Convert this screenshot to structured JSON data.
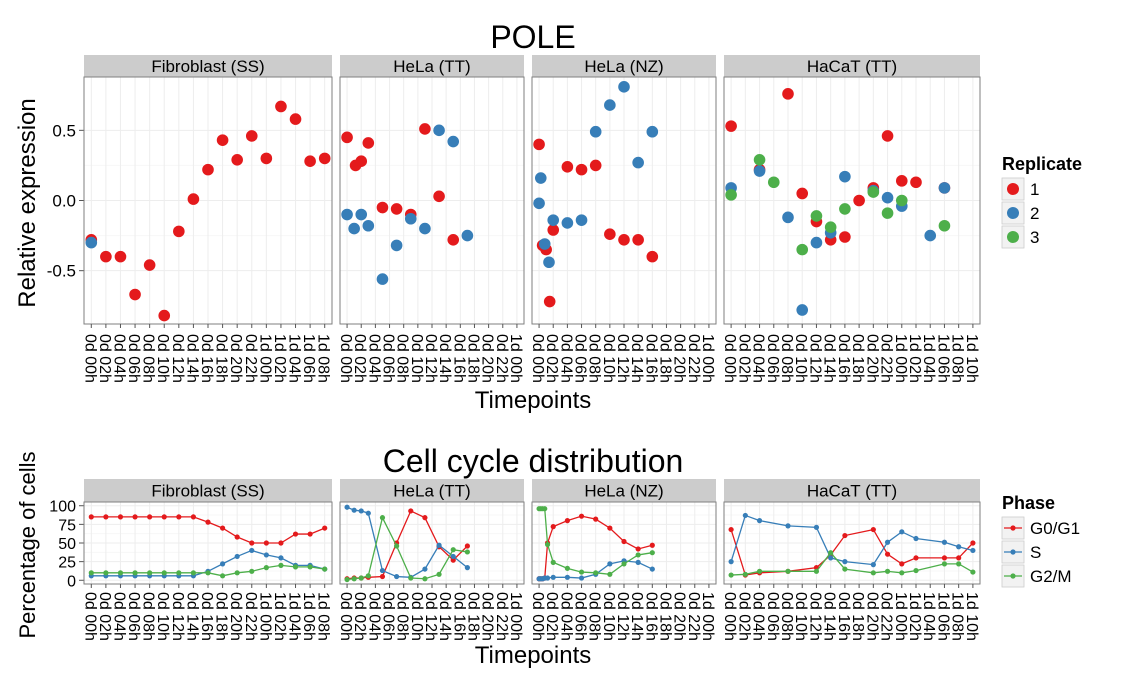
{
  "colors": {
    "red": "#E41A1C",
    "blue": "#377EB8",
    "green": "#4DAF4A",
    "strip_bg": "#CCCCCC",
    "panel_border": "#7F7F7F",
    "grid_major": "#EDEDED",
    "grid_minor": "#F7F7F7"
  },
  "chart_data": [
    {
      "type": "scatter",
      "title": "POLE",
      "xlabel": "Timepoints",
      "ylabel": "Relative expression",
      "ylim": [
        -0.88,
        0.88
      ],
      "yticks": [
        -0.5,
        0.0,
        0.5
      ],
      "ytick_labels": [
        "-0.5",
        "0.0",
        "0.5"
      ],
      "grid": true,
      "legend": {
        "title": "Replicate",
        "position": "right",
        "items": [
          {
            "label": "1",
            "color": "#E41A1C"
          },
          {
            "label": "2",
            "color": "#377EB8"
          },
          {
            "label": "3",
            "color": "#4DAF4A"
          }
        ]
      },
      "panels": [
        {
          "label": "Fibroblast (SS)",
          "x": [
            "0d 00h",
            "0d 02h",
            "0d 04h",
            "0d 06h",
            "0d 08h",
            "0d 10h",
            "0d 12h",
            "0d 14h",
            "0d 16h",
            "0d 18h",
            "0d 20h",
            "0d 22h",
            "1d 00h",
            "1d 02h",
            "1d 04h",
            "1d 06h",
            "1d 08h"
          ],
          "series": [
            {
              "name": "1",
              "values": [
                -0.28,
                -0.4,
                -0.4,
                -0.67,
                -0.46,
                -0.82,
                -0.22,
                0.01,
                0.22,
                0.43,
                0.29,
                0.46,
                0.3,
                0.67,
                0.58,
                0.28,
                0.3
              ]
            },
            {
              "name": "2",
              "values": [
                -0.3,
                null,
                null,
                null,
                null,
                null,
                null,
                null,
                null,
                null,
                null,
                null,
                null,
                null,
                null,
                null,
                null
              ]
            }
          ]
        },
        {
          "label": "HeLa (TT)",
          "x": [
            "0d 00h",
            "0d 02h",
            "0d 04h",
            "0d 06h",
            "0d 08h",
            "0d 10h",
            "0d 12h",
            "0d 14h",
            "0d 16h",
            "0d 18h",
            "0d 20h",
            "0d 22h",
            "1d 00h"
          ],
          "series": [
            {
              "name": "1",
              "values": [
                0.45,
                0.25,
                0.28,
                0.41,
                -0.05,
                -0.06,
                -0.1,
                0.51,
                0.03,
                -0.28,
                null,
                null,
                null
              ]
            },
            {
              "name": "2",
              "values": [
                -0.1,
                -0.2,
                -0.1,
                -0.18,
                -0.56,
                -0.32,
                -0.13,
                -0.2,
                0.5,
                0.42,
                -0.25,
                null,
                null
              ]
            }
          ],
          "x_positions": {
            "1": [
              0,
              0.6,
              1,
              1.5,
              2.5,
              3.5,
              4.5,
              5.5,
              6.5,
              7.5
            ],
            "2": [
              0,
              0.5,
              1,
              1.5,
              2.5,
              3.5,
              4.5,
              5.5,
              6.5,
              7.5,
              8.5
            ]
          }
        },
        {
          "label": "HeLa (NZ)",
          "x": [
            "0d 00h",
            "0d 02h",
            "0d 04h",
            "0d 06h",
            "0d 08h",
            "0d 10h",
            "0d 12h",
            "0d 14h",
            "0d 16h",
            "0d 18h",
            "0d 20h",
            "0d 22h",
            "1d 00h"
          ],
          "series": [
            {
              "name": "1",
              "values": [
                0.4,
                -0.32,
                -0.35,
                -0.72,
                -0.21,
                0.24,
                0.22,
                0.25,
                -0.24,
                -0.28,
                -0.28,
                -0.4
              ]
            },
            {
              "name": "2",
              "values": [
                -0.02,
                0.16,
                -0.31,
                -0.44,
                -0.14,
                -0.16,
                -0.14,
                0.49,
                0.68,
                0.81,
                0.27,
                0.49
              ]
            }
          ],
          "x_positions": {
            "1": [
              0,
              0.25,
              0.5,
              0.75,
              1,
              2,
              3,
              4,
              5,
              6,
              7,
              8
            ],
            "2": [
              0,
              0.12,
              0.4,
              0.7,
              1,
              2,
              3,
              4,
              5,
              6,
              7,
              8
            ]
          }
        },
        {
          "label": "HaCaT (TT)",
          "x": [
            "0d 00h",
            "0d 02h",
            "0d 04h",
            "0d 06h",
            "0d 08h",
            "0d 10h",
            "0d 12h",
            "0d 14h",
            "0d 16h",
            "0d 18h",
            "0d 20h",
            "0d 22h",
            "1d 00h",
            "1d 02h",
            "1d 04h",
            "1d 06h",
            "1d 08h",
            "1d 10h"
          ],
          "series": [
            {
              "name": "1",
              "values": [
                0.53,
                0.22,
                0.76,
                0.05,
                -0.15,
                -0.28,
                -0.26,
                0.0,
                0.09,
                0.46,
                0.14,
                0.13,
                0.09
              ]
            },
            {
              "name": "2",
              "values": [
                0.09,
                0.21,
                -0.12,
                -0.78,
                -0.3,
                -0.23,
                0.17,
                0.07,
                0.02,
                -0.04,
                -0.25,
                0.09
              ]
            },
            {
              "name": "3",
              "values": [
                0.04,
                0.29,
                0.13,
                -0.35,
                -0.11,
                -0.19,
                -0.06,
                0.06,
                -0.09,
                0.0,
                -0.18
              ]
            }
          ],
          "x_positions": {
            "1": [
              0,
              2,
              4,
              5,
              6,
              7,
              8,
              9,
              10,
              11,
              12,
              13,
              15
            ],
            "2": [
              0,
              2,
              4,
              5,
              6,
              7,
              8,
              10,
              11,
              12,
              14,
              15
            ],
            "3": [
              0,
              2,
              3,
              5,
              6,
              7,
              8,
              10,
              11,
              12,
              15
            ]
          }
        }
      ]
    },
    {
      "type": "line",
      "title": "Cell cycle distribution",
      "xlabel": "Timepoints",
      "ylabel": "Percentage of cells",
      "ylim": [
        -5,
        105
      ],
      "yticks": [
        0,
        25,
        50,
        75,
        100
      ],
      "ytick_labels": [
        "0",
        "25",
        "50",
        "75",
        "100"
      ],
      "grid": true,
      "legend": {
        "title": "Phase",
        "position": "right",
        "items": [
          {
            "label": "G0/G1",
            "color": "#E41A1C"
          },
          {
            "label": "S",
            "color": "#377EB8"
          },
          {
            "label": "G2/M",
            "color": "#4DAF4A"
          }
        ]
      },
      "panels": [
        {
          "label": "Fibroblast (SS)",
          "x": [
            "0d 00h",
            "0d 02h",
            "0d 04h",
            "0d 06h",
            "0d 08h",
            "0d 10h",
            "0d 12h",
            "0d 14h",
            "0d 16h",
            "0d 18h",
            "0d 20h",
            "0d 22h",
            "1d 00h",
            "1d 02h",
            "1d 04h",
            "1d 06h",
            "1d 08h"
          ],
          "series": [
            {
              "name": "G0/G1",
              "x_positions": [
                0,
                1,
                2,
                3,
                4,
                5,
                6,
                7,
                8,
                9,
                10,
                11,
                12,
                13,
                14,
                15,
                16
              ],
              "values": [
                85,
                85,
                85,
                85,
                85,
                85,
                85,
                85,
                78,
                70,
                58,
                50,
                50,
                50,
                62,
                62,
                70
              ]
            },
            {
              "name": "S",
              "x_positions": [
                0,
                1,
                2,
                3,
                4,
                5,
                6,
                7,
                8,
                9,
                10,
                11,
                12,
                13,
                14,
                15,
                16
              ],
              "values": [
                6,
                6,
                6,
                6,
                6,
                6,
                6,
                6,
                12,
                22,
                32,
                40,
                34,
                30,
                20,
                20,
                15
              ]
            },
            {
              "name": "G2/M",
              "x_positions": [
                0,
                1,
                2,
                3,
                4,
                5,
                6,
                7,
                8,
                9,
                10,
                11,
                12,
                13,
                14,
                15,
                16
              ],
              "values": [
                10,
                10,
                10,
                10,
                10,
                10,
                10,
                10,
                10,
                6,
                10,
                12,
                17,
                20,
                18,
                18,
                15
              ]
            }
          ]
        },
        {
          "label": "HeLa (TT)",
          "x": [
            "0d 00h",
            "0d 02h",
            "0d 04h",
            "0d 06h",
            "0d 08h",
            "0d 10h",
            "0d 12h",
            "0d 14h",
            "0d 16h",
            "0d 18h",
            "0d 20h",
            "0d 22h",
            "1d 00h"
          ],
          "series": [
            {
              "name": "G0/G1",
              "x_positions": [
                0,
                0.5,
                1,
                1.5,
                2.5,
                3.5,
                4.5,
                5.5,
                6.5,
                7.5,
                8.5
              ],
              "values": [
                2,
                3,
                3,
                4,
                5,
                50,
                93,
                84,
                45,
                27,
                46
              ]
            },
            {
              "name": "S",
              "x_positions": [
                0,
                0.5,
                1,
                1.5,
                2.5,
                3.5,
                4.5,
                5.5,
                6.5,
                7.5,
                8.5
              ],
              "values": [
                98,
                94,
                93,
                90,
                13,
                5,
                4,
                15,
                47,
                32,
                17
              ]
            },
            {
              "name": "G2/M",
              "x_positions": [
                0,
                0.5,
                1,
                1.5,
                2.5,
                3.5,
                4.5,
                5.5,
                6.5,
                7.5,
                8.5
              ],
              "values": [
                1,
                2,
                3,
                6,
                84,
                46,
                3,
                2,
                8,
                41,
                38
              ]
            }
          ]
        },
        {
          "label": "HeLa (NZ)",
          "x": [
            "0d 00h",
            "0d 02h",
            "0d 04h",
            "0d 06h",
            "0d 08h",
            "0d 10h",
            "0d 12h",
            "0d 14h",
            "0d 16h",
            "0d 18h",
            "0d 20h",
            "0d 22h",
            "1d 00h"
          ],
          "series": [
            {
              "name": "G0/G1",
              "x_positions": [
                0,
                0.12,
                0.25,
                0.4,
                0.6,
                1,
                2,
                3,
                4,
                5,
                6,
                7,
                8
              ],
              "values": [
                2,
                2,
                2,
                3,
                50,
                72,
                80,
                86,
                82,
                70,
                52,
                42,
                47
              ]
            },
            {
              "name": "S",
              "x_positions": [
                0,
                0.12,
                0.25,
                0.4,
                0.6,
                1,
                2,
                3,
                4,
                5,
                6,
                7,
                8
              ],
              "values": [
                2,
                2,
                2,
                3,
                3,
                4,
                4,
                3,
                8,
                22,
                26,
                24,
                15
              ]
            },
            {
              "name": "G2/M",
              "x_positions": [
                0,
                0.12,
                0.25,
                0.4,
                0.6,
                1,
                2,
                3,
                4,
                5,
                6,
                7,
                8
              ],
              "values": [
                96,
                96,
                96,
                96,
                48,
                24,
                16,
                11,
                10,
                8,
                22,
                34,
                37
              ]
            }
          ]
        },
        {
          "label": "HaCaT (TT)",
          "x": [
            "0d 00h",
            "0d 02h",
            "0d 04h",
            "0d 06h",
            "0d 08h",
            "0d 10h",
            "0d 12h",
            "0d 14h",
            "0d 16h",
            "0d 18h",
            "0d 20h",
            "0d 22h",
            "1d 00h",
            "1d 02h",
            "1d 04h",
            "1d 06h",
            "1d 08h",
            "1d 10h"
          ],
          "series": [
            {
              "name": "G0/G1",
              "x_positions": [
                0,
                1,
                2,
                4,
                6,
                7,
                8,
                10,
                11,
                12,
                13,
                15,
                16,
                17
              ],
              "values": [
                68,
                7,
                10,
                12,
                17,
                34,
                60,
                68,
                35,
                22,
                30,
                30,
                30,
                50
              ]
            },
            {
              "name": "S",
              "x_positions": [
                0,
                1,
                2,
                4,
                6,
                7,
                8,
                10,
                11,
                12,
                13,
                15,
                16,
                17
              ],
              "values": [
                25,
                87,
                80,
                73,
                71,
                30,
                25,
                21,
                51,
                65,
                56,
                51,
                45,
                40
              ]
            },
            {
              "name": "G2/M",
              "x_positions": [
                0,
                1,
                2,
                4,
                6,
                7,
                8,
                10,
                11,
                12,
                13,
                15,
                16,
                17
              ],
              "values": [
                7,
                8,
                12,
                12,
                12,
                37,
                15,
                10,
                12,
                10,
                13,
                22,
                22,
                11
              ]
            }
          ]
        }
      ]
    }
  ]
}
